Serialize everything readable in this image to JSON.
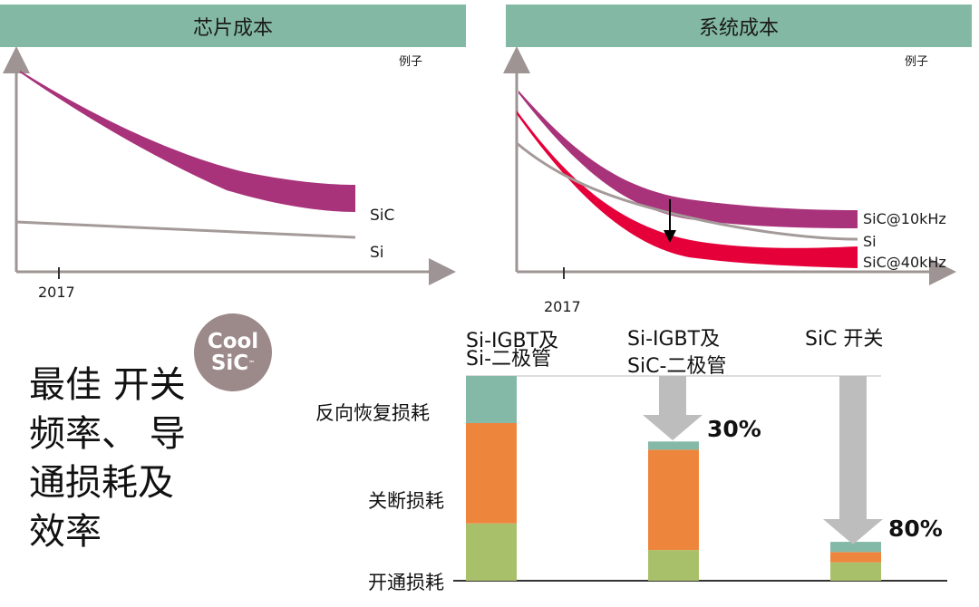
{
  "banners": {
    "left": "芯片成本",
    "right": "系统成本"
  },
  "left_chart": {
    "corner_note": "例子",
    "tick_label": "2017",
    "series_labels": [
      "SiC",
      "Si"
    ]
  },
  "right_chart": {
    "corner_note": "例子",
    "tick_label": "2017",
    "series_labels": [
      "SiC@10kHz",
      "Si",
      "SiC@40kHz"
    ]
  },
  "headline": "最佳 开关\n频率、 导\n通损耗及\n效率",
  "logo": {
    "line1": "Cool",
    "line2": "SiC",
    "tm": "™"
  },
  "bar_section": {
    "columns": [
      {
        "label_line1": "Si-IGBT及",
        "label_line2": "Si-二极管"
      },
      {
        "label_line1": "Si-IGBT及",
        "label_line2": "SiC-二极管"
      },
      {
        "label_line1": "SiC 开关",
        "label_line2": ""
      }
    ],
    "row_labels": [
      "反向恢复损耗",
      "关断损耗",
      "开通损耗"
    ],
    "reductions": [
      "30%",
      "80%"
    ]
  },
  "colors": {
    "banner": "#83b9a4",
    "sic_band": "#a8337a",
    "sic40_band": "#e5003a",
    "si_line": "#a59a9a",
    "axis": "#9e9494",
    "teal": "#84b9a8",
    "orange": "#ee853d",
    "green": "#a9c06a",
    "arrow": "#bdbdbd"
  },
  "chart_data": {
    "type": "bar",
    "stacked": true,
    "categories": [
      "Si-IGBT及Si-二极管",
      "Si-IGBT及SiC-二极管",
      "SiC 开关"
    ],
    "series": [
      {
        "name": "开通损耗",
        "values": [
          28,
          15,
          9
        ]
      },
      {
        "name": "关断损耗",
        "values": [
          49,
          49,
          5
        ]
      },
      {
        "name": "反向恢复损耗",
        "values": [
          23,
          4,
          5
        ]
      }
    ],
    "ylim": [
      0,
      100
    ],
    "annotations": [
      "30%",
      "80%"
    ]
  }
}
